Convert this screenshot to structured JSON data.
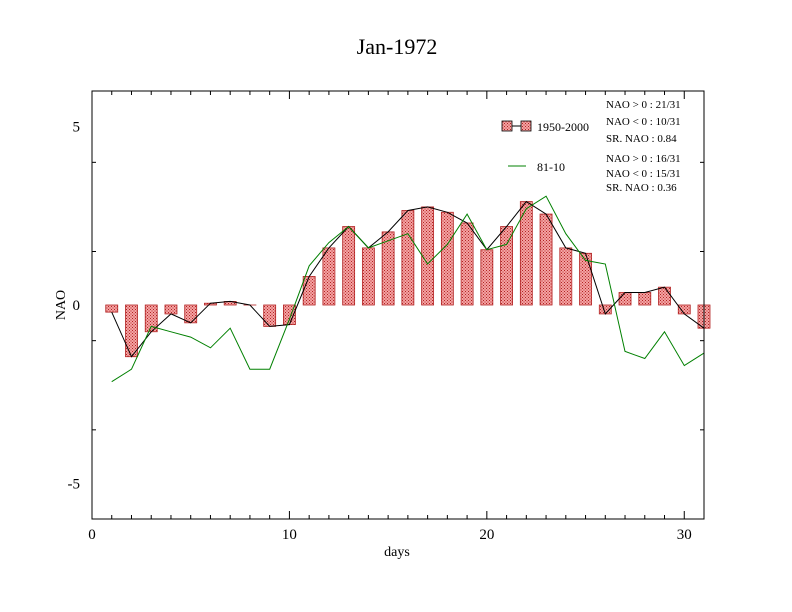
{
  "chart_data": {
    "type": "bar",
    "title": "Jan-1972",
    "xlabel": "days",
    "ylabel": "NAO",
    "xlim": [
      0,
      31
    ],
    "ylim": [
      -6,
      6
    ],
    "x_ticks": [
      0,
      10,
      20,
      30
    ],
    "y_ticks": [
      -5,
      0,
      5
    ],
    "x": [
      1,
      2,
      3,
      4,
      5,
      6,
      7,
      8,
      9,
      10,
      11,
      12,
      13,
      14,
      15,
      16,
      17,
      18,
      19,
      20,
      21,
      22,
      23,
      24,
      25,
      26,
      27,
      28,
      29,
      30,
      31
    ],
    "series": [
      {
        "name": "1950-2000",
        "kind": "bar+line",
        "bar_fill": "#f4a3a3",
        "bar_stroke": "#b22222",
        "line_color": "#000000",
        "values": [
          -0.2,
          -1.45,
          -0.75,
          -0.25,
          -0.5,
          0.05,
          0.1,
          0.0,
          -0.6,
          -0.55,
          0.8,
          1.6,
          2.2,
          1.6,
          2.05,
          2.65,
          2.75,
          2.6,
          2.3,
          1.55,
          2.2,
          2.9,
          2.55,
          1.6,
          1.45,
          -0.25,
          0.35,
          0.35,
          0.5,
          -0.25,
          -0.65
        ]
      },
      {
        "name": "81-10",
        "kind": "line",
        "line_color": "#008000",
        "values": [
          -2.15,
          -1.8,
          -0.6,
          -0.75,
          -0.9,
          -1.2,
          -0.65,
          -1.8,
          -1.8,
          -0.4,
          1.1,
          1.75,
          2.2,
          1.6,
          1.8,
          2.0,
          1.15,
          1.7,
          2.55,
          1.55,
          1.7,
          2.7,
          3.05,
          2.0,
          1.25,
          1.15,
          -1.3,
          -1.5,
          -0.75,
          -1.7,
          -1.35
        ]
      }
    ],
    "legend_position": "top-right",
    "stats": [
      [
        "NAO > 0 : 21/31",
        "NAO < 0 : 10/31",
        "SR. NAO :  0.84"
      ],
      [
        "NAO > 0 : 16/31",
        "NAO < 0 : 15/31",
        "SR. NAO :  0.36"
      ]
    ]
  }
}
